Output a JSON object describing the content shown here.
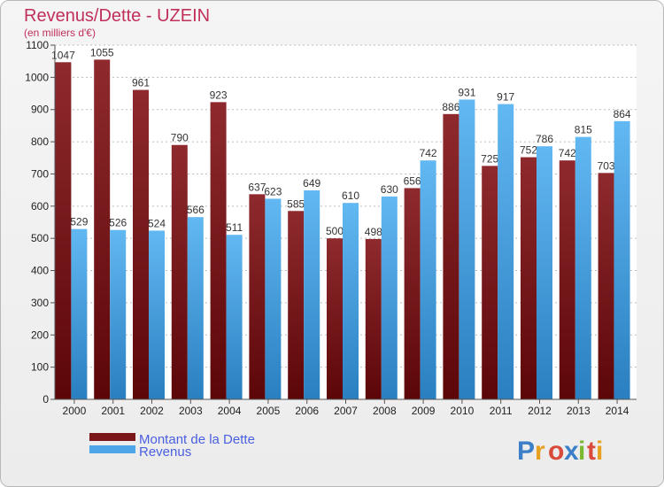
{
  "chart_data": {
    "type": "bar",
    "title": "Revenus/Dette - UZEIN",
    "subtitle": "(en milliers d'€)",
    "categories": [
      "2000",
      "2001",
      "2002",
      "2003",
      "2004",
      "2005",
      "2006",
      "2007",
      "2008",
      "2009",
      "2010",
      "2011",
      "2012",
      "2013",
      "2014"
    ],
    "series": [
      {
        "name": "Montant de la Dette",
        "values": [
          1047,
          1055,
          961,
          790,
          923,
          637,
          585,
          500,
          498,
          656,
          886,
          725,
          752,
          742,
          703
        ],
        "color": "#7a1518"
      },
      {
        "name": "Revenus",
        "values": [
          529,
          526,
          524,
          566,
          511,
          623,
          649,
          610,
          630,
          742,
          931,
          917,
          786,
          815,
          864
        ],
        "color": "#4da6e8"
      }
    ],
    "ylim": [
      0,
      1100
    ],
    "yticks": [
      0,
      100,
      200,
      300,
      400,
      500,
      600,
      700,
      800,
      900,
      1000,
      1100
    ],
    "grid": true,
    "legend_position": "bottom-left"
  },
  "logo": {
    "text": "Proxiti",
    "letter_colors": [
      "#3a7fc8",
      "#e8a020",
      "#d94a3a",
      "#3a7fc8",
      "#7ab830",
      "#d94a3a",
      "#e8a020"
    ]
  }
}
